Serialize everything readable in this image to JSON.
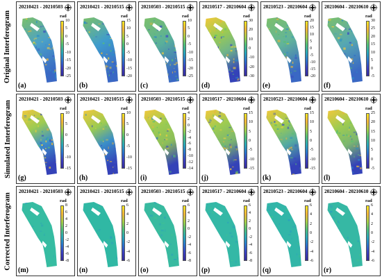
{
  "rows": [
    {
      "label": "Original Interferogram",
      "panels": [
        {
          "title": "20210421 - 20210503",
          "letter": "(a)",
          "unit": "rad",
          "ticks": [
            "10",
            "5",
            "0",
            "-5",
            "-10",
            "-15",
            "-20",
            "-25"
          ],
          "style": "rand",
          "shade": "#4aa0c8"
        },
        {
          "title": "20210421 - 20210515",
          "letter": "(b)",
          "unit": "rad",
          "ticks": [
            "15",
            "10",
            "5",
            "0",
            "-5",
            "-10",
            "-15",
            "-20"
          ],
          "style": "rand",
          "shade": "#3f9ccc"
        },
        {
          "title": "20210503 - 20210515",
          "letter": "(c)",
          "unit": "rad",
          "ticks": [
            "10",
            "5",
            "0",
            "-5",
            "-10",
            "-15",
            "-20",
            "-25"
          ],
          "style": "rand",
          "shade": "#5ab09a"
        },
        {
          "title": "20210517 - 20210604",
          "letter": "(d)",
          "unit": "rad",
          "ticks": [
            "30",
            "20",
            "10",
            "0",
            "-10",
            "-20",
            "-30"
          ],
          "style": "grad",
          "shade": "#6fb48a"
        },
        {
          "title": "20210523 - 20210604",
          "letter": "(e)",
          "unit": "rad",
          "ticks": [
            "20",
            "15",
            "10",
            "5",
            "0",
            "-5",
            "-10",
            "-15",
            "-20"
          ],
          "style": "rand",
          "shade": "#62b49a"
        },
        {
          "title": "20210604 - 20210610",
          "letter": "(f)",
          "unit": "rad",
          "ticks": [
            "30",
            "25",
            "20",
            "15",
            "10",
            "5",
            "0",
            "-5"
          ],
          "style": "rand",
          "shade": "#56a8b2"
        }
      ]
    },
    {
      "label": "Simulated Interferogram",
      "panels": [
        {
          "title": "20210421 - 20210503",
          "letter": "(g)",
          "unit": "rad",
          "ticks": [
            "10",
            "5",
            "0",
            "-5",
            "-10",
            "-15"
          ],
          "style": "grad",
          "shade": "#3e92c8"
        },
        {
          "title": "20210421 - 20210515",
          "letter": "(h)",
          "unit": "rad",
          "ticks": [
            "10",
            "5",
            "0",
            "-5",
            "-10",
            "-15"
          ],
          "style": "grad",
          "shade": "#3a8ec8"
        },
        {
          "title": "20210503 - 20210515",
          "letter": "(i)",
          "unit": "rad",
          "ticks": [
            "4",
            "2",
            "0",
            "-2",
            "-4",
            "-6",
            "-8",
            "-10",
            "-12",
            "-14"
          ],
          "style": "grad",
          "shade": "#8cbe5a"
        },
        {
          "title": "20210517 - 20210604",
          "letter": "(j)",
          "unit": "rad",
          "ticks": [
            "15",
            "10",
            "5",
            "0",
            "-5",
            "-10",
            "-15"
          ],
          "style": "grad",
          "shade": "#7cb66e"
        },
        {
          "title": "20210523 - 20210604",
          "letter": "(k)",
          "unit": "rad",
          "ticks": [
            "15",
            "10",
            "5",
            "0",
            "-5",
            "-10",
            "-15"
          ],
          "style": "grad",
          "shade": "#52aaa2"
        },
        {
          "title": "20210604 - 20210610",
          "letter": "(l)",
          "unit": "rad",
          "ticks": [
            "25",
            "20",
            "15",
            "10",
            "5",
            "0",
            "-5"
          ],
          "style": "grad",
          "shade": "#7ab670"
        }
      ]
    },
    {
      "label": "Corrected Interferogram",
      "panels": [
        {
          "title": "20210421 - 20210503",
          "letter": "(m)",
          "unit": "rad",
          "ticks": [
            "8",
            "6",
            "4",
            "2",
            "0",
            "-2",
            "-4",
            "-6",
            "-8"
          ],
          "style": "flat",
          "shade": "#36bca2"
        },
        {
          "title": "20210421 - 20210515",
          "letter": "(n)",
          "unit": "rad",
          "ticks": [
            "6",
            "4",
            "2",
            "0",
            "-2",
            "-4",
            "-6"
          ],
          "style": "flat",
          "shade": "#30b8a4"
        },
        {
          "title": "20210503 - 20210515",
          "letter": "(o)",
          "unit": "rad",
          "ticks": [
            "6",
            "4",
            "2",
            "0",
            "-2",
            "-4",
            "-6",
            "-8"
          ],
          "style": "flat",
          "shade": "#38baa0"
        },
        {
          "title": "20210517 - 20210604",
          "letter": "(p)",
          "unit": "rad",
          "ticks": [
            "6",
            "4",
            "2",
            "0",
            "-2",
            "-4",
            "-6",
            "-8"
          ],
          "style": "flat",
          "shade": "#34b8a6"
        },
        {
          "title": "20210523 - 20210604",
          "letter": "(q)",
          "unit": "rad",
          "ticks": [
            "6",
            "4",
            "2",
            "0",
            "-2",
            "-4",
            "-6"
          ],
          "style": "flat",
          "shade": "#32b6a8"
        },
        {
          "title": "20210604 - 20210610",
          "letter": "(r)",
          "unit": "rad",
          "ticks": [
            "6",
            "4",
            "2",
            "0",
            "-2",
            "-4",
            "-6"
          ],
          "style": "flat",
          "shade": "#36b8a4"
        }
      ]
    }
  ]
}
